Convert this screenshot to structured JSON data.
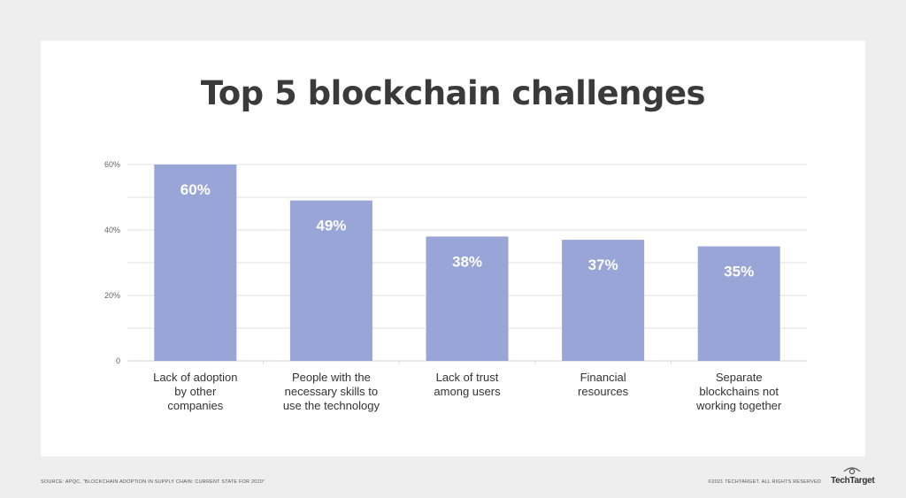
{
  "title": "Top 5 blockchain challenges",
  "footer": {
    "source": "SOURCE: APQC, \"BLOCKCHAIN ADOPTION IN SUPPLY CHAIN: CURRENT STATE FOR 2020\"",
    "copyright": "©2021 TECHTARGET. ALL RIGHTS RESERVED",
    "brand": "TechTarget"
  },
  "colors": {
    "bar": "#98a5d6",
    "grid": "#d9d9d9",
    "title": "#3a3a3a",
    "background": "#eeeeee",
    "card": "#ffffff"
  },
  "chart_data": {
    "type": "bar",
    "title": "Top 5 blockchain challenges",
    "categories": [
      [
        "Lack of adoption",
        "by other",
        "companies"
      ],
      [
        "People with the",
        "necessary skills to",
        "use the technology"
      ],
      [
        "Lack of trust",
        "among users"
      ],
      [
        "Financial",
        "resources"
      ],
      [
        "Separate",
        "blockchains not",
        "working together"
      ]
    ],
    "values": [
      60,
      49,
      38,
      37,
      35
    ],
    "data_labels": [
      "60%",
      "49%",
      "38%",
      "37%",
      "35%"
    ],
    "ylim": [
      0,
      60
    ],
    "yticks": [
      0,
      20,
      40,
      60
    ],
    "ytick_labels": [
      "0",
      "20%",
      "40%",
      "60%"
    ],
    "grid": true,
    "xlabel": "",
    "ylabel": ""
  }
}
